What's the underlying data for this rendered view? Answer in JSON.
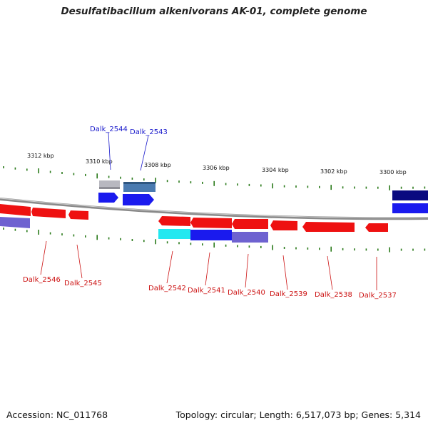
{
  "title": "Desulfatibacillum alkenivorans AK-01, complete genome",
  "footer": {
    "accession": "Accession: NC_011768",
    "info": "Topology: circular; Length: 6,517,073 bp; Genes: 5,314"
  },
  "scale_labels": [
    "3312 kbp",
    "3310 kbp",
    "3308 kbp",
    "3306 kbp",
    "3304 kbp",
    "3302 kbp",
    "3300 kbp"
  ],
  "gene_labels": {
    "top": [
      "Dalk_2544",
      "Dalk_2543"
    ],
    "bottom": [
      "Dalk_2546",
      "Dalk_2545",
      "Dalk_2542",
      "Dalk_2541",
      "Dalk_2540",
      "Dalk_2539",
      "Dalk_2538",
      "Dalk_2537"
    ]
  },
  "colors": {
    "backbone": "#8a8a8a",
    "tick": "#2a7a1a",
    "top_label": "#1a1acc",
    "bottom_label": "#cc1111",
    "red_gene": "#ee1111",
    "blue_gene": "#1a1aee",
    "navy_gene": "#0a0a80",
    "purple_gene": "#6e62d0",
    "cyan_gene": "#22e8f0",
    "steel_gene": "#4a7ab0",
    "gray_gene": "#b8b8c0"
  }
}
